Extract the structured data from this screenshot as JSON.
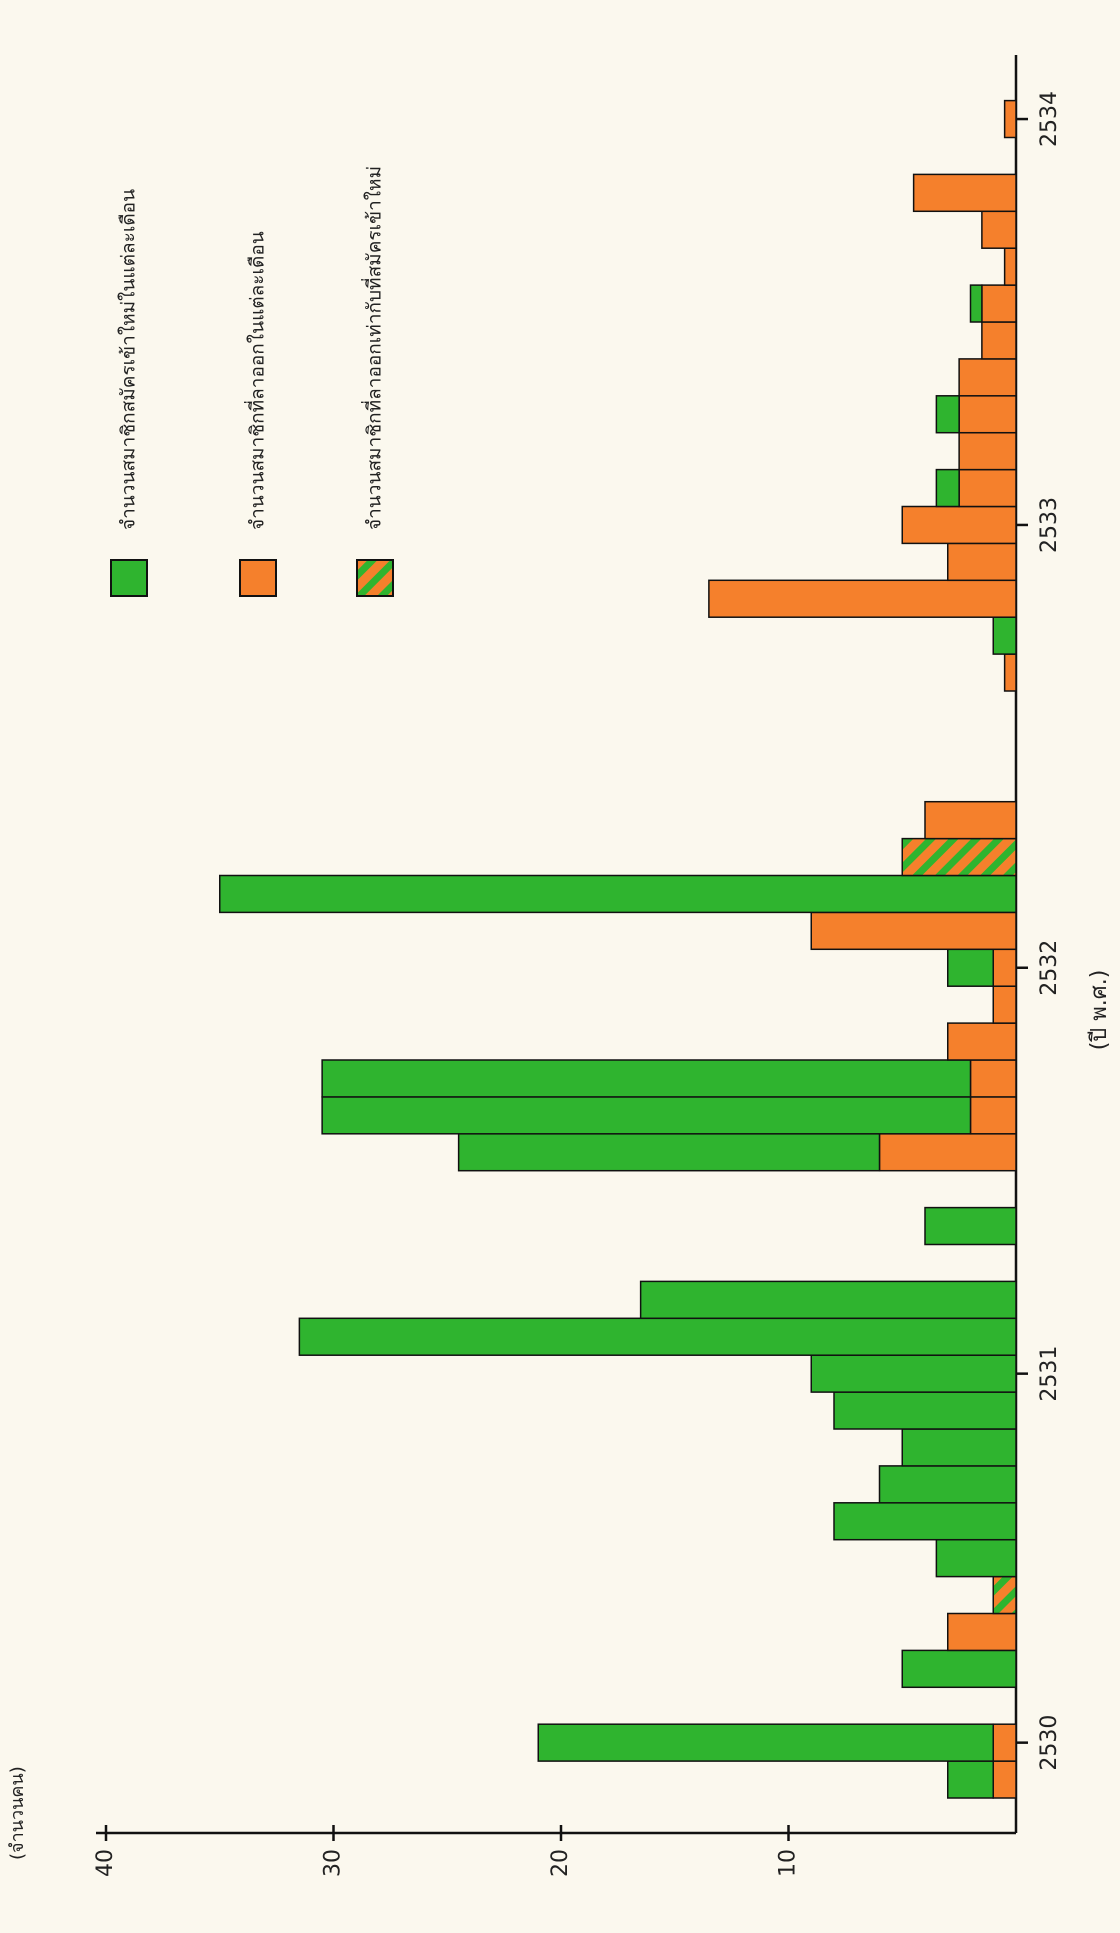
{
  "chart_data": {
    "type": "bar",
    "orientation": "horizontal",
    "x_axis_label": "(จำนวนคน)",
    "y_axis_label": "(ปี พ.ศ.)",
    "categories": [
      null,
      "2530",
      null,
      null,
      null,
      null,
      null,
      null,
      null,
      null,
      null,
      "2531",
      null,
      null,
      null,
      null,
      null,
      null,
      null,
      null,
      null,
      null,
      "2532",
      null,
      null,
      null,
      null,
      null,
      null,
      null,
      null,
      null,
      null,
      null,
      "2533",
      null,
      null,
      null,
      null,
      null,
      null,
      null,
      null,
      null,
      null,
      "2534"
    ],
    "series": [
      {
        "name": "จำนวนสมาชิกที่ลาออกในแต่ละเดือน",
        "color": "#f5802c",
        "values": [
          1,
          1,
          null,
          null,
          3,
          null,
          null,
          null,
          null,
          null,
          null,
          null,
          null,
          null,
          null,
          null,
          null,
          6,
          2,
          2,
          3,
          1,
          1,
          9,
          null,
          null,
          4,
          null,
          null,
          null,
          0.5,
          null,
          13.5,
          3,
          5,
          2.5,
          2.5,
          2.5,
          2.5,
          1.5,
          1.5,
          0.5,
          1.5,
          4.5,
          null,
          0.5
        ]
      },
      {
        "name": "จำนวนสมาชิกสมัครเข้าใหม่ในแต่ละเดือน",
        "color": "#2fb42f",
        "values": [
          2,
          20,
          null,
          5,
          null,
          null,
          3.5,
          8,
          6,
          5,
          8,
          9,
          31.5,
          16.5,
          null,
          4,
          null,
          18.5,
          28.5,
          28.5,
          null,
          null,
          2,
          null,
          35,
          null,
          null,
          null,
          null,
          null,
          null,
          1,
          null,
          null,
          null,
          1,
          null,
          1,
          null,
          null,
          0.5,
          null,
          null,
          null,
          null,
          null
        ]
      },
      {
        "name": "จำนวนสมาชิกที่ลาออกเท่ากับที่สมัครเข้าใหม่",
        "color": "hatch",
        "values": [
          null,
          null,
          null,
          null,
          null,
          1,
          null,
          null,
          null,
          null,
          null,
          null,
          null,
          null,
          null,
          null,
          null,
          null,
          null,
          null,
          null,
          null,
          null,
          null,
          null,
          5,
          null,
          null,
          null,
          null,
          null,
          null,
          null,
          null,
          null,
          null,
          null,
          null,
          null,
          null,
          null,
          null,
          null,
          null,
          null,
          null
        ]
      }
    ],
    "stacked": true,
    "xlim": [
      0,
      40
    ],
    "xticks": [
      10,
      20,
      30,
      40
    ]
  }
}
